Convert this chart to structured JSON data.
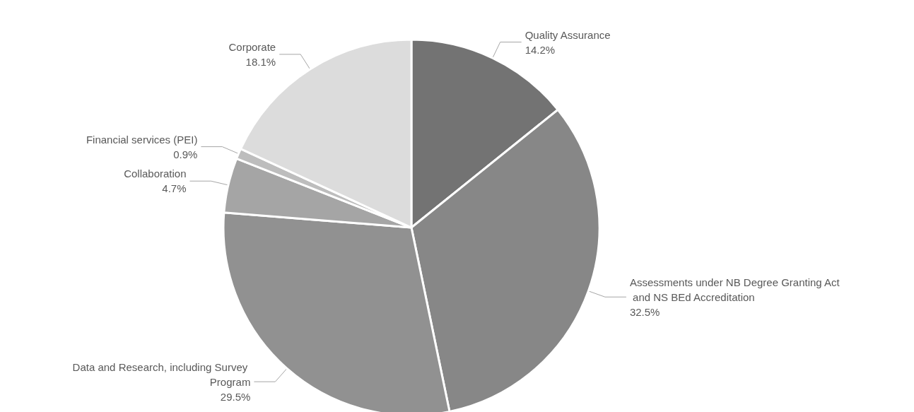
{
  "chart_data": {
    "type": "pie",
    "categories": [
      "Quality Assurance",
      "Assessments under NB Degree Granting Act and NS BEd Accreditation",
      "Data and Research, including Survey Program",
      "Collaboration",
      "Financial services (PEI)",
      "Corporate"
    ],
    "values": [
      14.2,
      32.5,
      29.5,
      4.7,
      0.9,
      18.1
    ],
    "value_labels": [
      "14.2%",
      "32.5%",
      "29.5%",
      "4.7%",
      "0.9%",
      "18.1%"
    ],
    "colors": [
      "#737373",
      "#878787",
      "#919191",
      "#a5a5a5",
      "#bdbdbd",
      "#dcdcdc"
    ],
    "legend": false
  }
}
